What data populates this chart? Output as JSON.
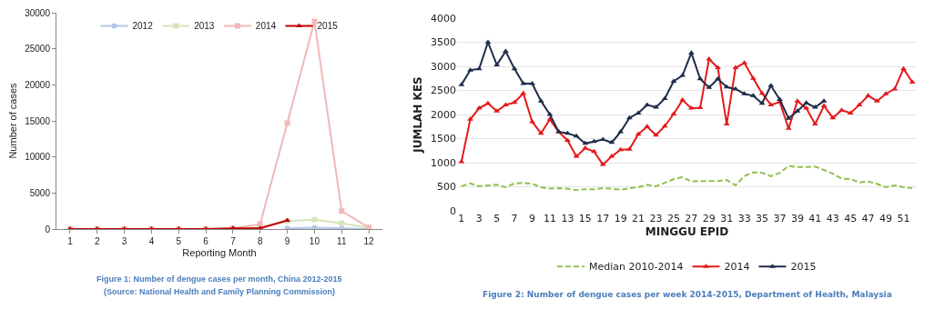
{
  "chart_data": [
    {
      "type": "line",
      "xlabel": "Reporting Month",
      "ylabel": "Number of cases",
      "annotations": [
        "Figure 1: Number of dengue cases per month, China 2012-2015",
        "(Source: National Health and Family Planning Commission)"
      ],
      "x": [
        1,
        2,
        3,
        4,
        5,
        6,
        7,
        8,
        9,
        10,
        11,
        12
      ],
      "xlim": [
        0.5,
        12.5
      ],
      "xticks": [
        1,
        2,
        3,
        4,
        5,
        6,
        7,
        8,
        9,
        10,
        11,
        12
      ],
      "ylim": [
        0,
        30000
      ],
      "yticks": [
        0,
        5000,
        10000,
        15000,
        20000,
        25000,
        30000
      ],
      "grid": false,
      "legend": "top",
      "series": [
        {
          "name": "2012",
          "color": "#b4c7e7",
          "marker": "circle",
          "values": [
            null,
            null,
            null,
            null,
            null,
            null,
            null,
            null,
            100,
            200,
            100,
            0
          ]
        },
        {
          "name": "2013",
          "color": "#d7e4bd",
          "marker": "square",
          "values": [
            0,
            0,
            0,
            0,
            0,
            0,
            0,
            300,
            1100,
            1300,
            800,
            200
          ]
        },
        {
          "name": "2014",
          "color": "#f2b8b8",
          "marker": "square",
          "values": [
            0,
            0,
            0,
            0,
            0,
            0,
            100,
            700,
            14700,
            28800,
            2500,
            200
          ]
        },
        {
          "name": "2015",
          "color": "#c00000",
          "marker": "triangle",
          "values": [
            0,
            0,
            0,
            0,
            0,
            0,
            100,
            100,
            1200,
            null,
            null,
            null
          ]
        }
      ]
    },
    {
      "type": "line",
      "xlabel": "MINGGU EPID",
      "ylabel": "JUMLAH KES",
      "annotations": [
        "Figure 2: Number of dengue cases per week 2014-2015, Department of Health, Malaysia"
      ],
      "x": [
        1,
        2,
        3,
        4,
        5,
        6,
        7,
        8,
        9,
        10,
        11,
        12,
        13,
        14,
        15,
        16,
        17,
        18,
        19,
        20,
        21,
        22,
        23,
        24,
        25,
        26,
        27,
        28,
        29,
        30,
        31,
        32,
        33,
        34,
        35,
        36,
        37,
        38,
        39,
        40,
        41,
        42,
        43,
        44,
        45,
        46,
        47,
        48,
        49,
        50,
        51,
        52
      ],
      "xlim": [
        0.5,
        52.5
      ],
      "xticks": [
        1,
        3,
        5,
        7,
        9,
        11,
        13,
        15,
        17,
        19,
        21,
        23,
        25,
        27,
        29,
        31,
        33,
        35,
        37,
        39,
        41,
        43,
        45,
        47,
        49,
        51
      ],
      "ylim": [
        0,
        4000
      ],
      "yticks": [
        0,
        500,
        1000,
        1500,
        2000,
        2500,
        3000,
        3500,
        4000
      ],
      "grid": "y",
      "legend": "bottom",
      "series": [
        {
          "name": "Median 2010-2014",
          "color": "#92c050",
          "marker": "none",
          "line_style": "dashed",
          "values": [
            510,
            570,
            510,
            530,
            540,
            490,
            570,
            580,
            560,
            490,
            460,
            470,
            460,
            430,
            450,
            450,
            470,
            460,
            440,
            470,
            490,
            540,
            510,
            580,
            660,
            700,
            610,
            620,
            620,
            620,
            640,
            530,
            720,
            800,
            790,
            720,
            790,
            930,
            910,
            910,
            920,
            850,
            770,
            670,
            660,
            590,
            610,
            560,
            490,
            530,
            490,
            470
          ]
        },
        {
          "name": "2014",
          "color": "#e31a1c",
          "marker": "triangle",
          "line_style": "solid",
          "values": [
            1020,
            1900,
            2130,
            2230,
            2070,
            2200,
            2250,
            2440,
            1850,
            1610,
            1900,
            1640,
            1460,
            1130,
            1300,
            1230,
            960,
            1130,
            1270,
            1280,
            1590,
            1750,
            1570,
            1760,
            2010,
            2300,
            2130,
            2140,
            3150,
            2970,
            1800,
            2970,
            3070,
            2750,
            2440,
            2200,
            2260,
            1710,
            2280,
            2130,
            1800,
            2180,
            1930,
            2090,
            2030,
            2200,
            2390,
            2280,
            2430,
            2530,
            2950,
            2670
          ]
        },
        {
          "name": "2015",
          "color": "#1f2d4a",
          "marker": "triangle",
          "line_style": "solid",
          "values": [
            2620,
            2920,
            2950,
            3500,
            3030,
            3310,
            2950,
            2640,
            2640,
            2280,
            2000,
            1640,
            1610,
            1550,
            1400,
            1440,
            1480,
            1420,
            1640,
            1930,
            2030,
            2200,
            2150,
            2330,
            2690,
            2810,
            3280,
            2740,
            2560,
            2740,
            2570,
            2530,
            2430,
            2390,
            2230,
            2600,
            2310,
            1920,
            2070,
            2240,
            2150,
            2280,
            null,
            null,
            null,
            null,
            null,
            null,
            null,
            null,
            null,
            null
          ]
        }
      ]
    }
  ]
}
